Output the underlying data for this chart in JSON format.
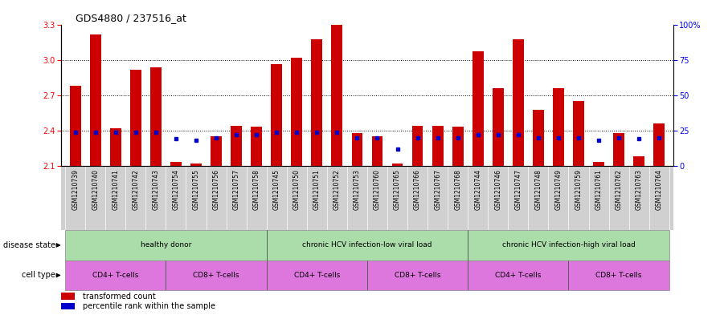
{
  "title": "GDS4880 / 237516_at",
  "samples": [
    "GSM1210739",
    "GSM1210740",
    "GSM1210741",
    "GSM1210742",
    "GSM1210743",
    "GSM1210754",
    "GSM1210755",
    "GSM1210756",
    "GSM1210757",
    "GSM1210758",
    "GSM1210745",
    "GSM1210750",
    "GSM1210751",
    "GSM1210752",
    "GSM1210753",
    "GSM1210760",
    "GSM1210765",
    "GSM1210766",
    "GSM1210767",
    "GSM1210768",
    "GSM1210744",
    "GSM1210746",
    "GSM1210747",
    "GSM1210748",
    "GSM1210749",
    "GSM1210759",
    "GSM1210761",
    "GSM1210762",
    "GSM1210763",
    "GSM1210764"
  ],
  "transformed_count": [
    2.78,
    3.22,
    2.42,
    2.92,
    2.94,
    2.13,
    2.12,
    2.35,
    2.44,
    2.43,
    2.97,
    3.02,
    3.18,
    3.32,
    2.38,
    2.35,
    2.12,
    2.44,
    2.44,
    2.43,
    3.08,
    2.76,
    3.18,
    2.58,
    2.76,
    2.65,
    2.13,
    2.38,
    2.18,
    2.46
  ],
  "percentile_rank": [
    24,
    24,
    24,
    24,
    24,
    19,
    18,
    20,
    22,
    22,
    24,
    24,
    24,
    24,
    20,
    20,
    12,
    20,
    20,
    20,
    22,
    22,
    22,
    20,
    20,
    20,
    18,
    20,
    19,
    20
  ],
  "ylim_left": [
    2.1,
    3.3
  ],
  "ylim_right": [
    0,
    100
  ],
  "yticks_left": [
    2.1,
    2.4,
    2.7,
    3.0,
    3.3
  ],
  "yticks_right": [
    0,
    25,
    50,
    75,
    100
  ],
  "bar_color": "#cc0000",
  "dot_color": "#0000cc",
  "xtick_bg": "#d0d0d0",
  "ds_color": "#aaddaa",
  "ct_color": "#dd77dd",
  "ds_groups": [
    {
      "label": "healthy donor",
      "start": 0,
      "end": 9
    },
    {
      "label": "chronic HCV infection-low viral load",
      "start": 10,
      "end": 19
    },
    {
      "label": "chronic HCV infection-high viral load",
      "start": 20,
      "end": 29
    }
  ],
  "ct_groups": [
    {
      "label": "CD4+ T-cells",
      "start": 0,
      "end": 4
    },
    {
      "label": "CD8+ T-cells",
      "start": 5,
      "end": 9
    },
    {
      "label": "CD4+ T-cells",
      "start": 10,
      "end": 14
    },
    {
      "label": "CD8+ T-cells",
      "start": 15,
      "end": 19
    },
    {
      "label": "CD4+ T-cells",
      "start": 20,
      "end": 24
    },
    {
      "label": "CD8+ T-cells",
      "start": 25,
      "end": 29
    }
  ],
  "disease_state_label": "disease state",
  "cell_type_label": "cell type",
  "legend_transformed": "transformed count",
  "legend_percentile": "percentile rank within the sample"
}
